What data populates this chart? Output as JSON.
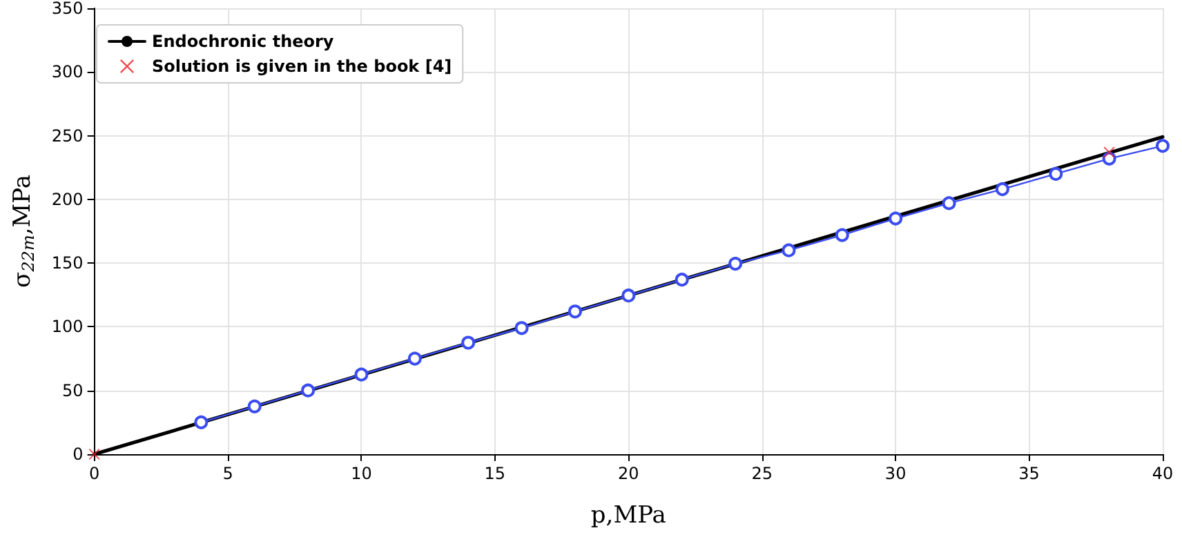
{
  "chart_data": {
    "type": "line",
    "xlabel": "p,MPa",
    "ylabel": "σ$_{22m}$,MPa",
    "xlim": [
      0,
      40
    ],
    "xticks": [
      0,
      5,
      10,
      15,
      20,
      25,
      30,
      35,
      40
    ],
    "ylim": [
      0,
      350
    ],
    "yticks": [
      0,
      50,
      100,
      150,
      200,
      250,
      300,
      350
    ],
    "grid": true,
    "legend": "top left",
    "series": [
      {
        "name": "Endochronic theory",
        "color": "#000000",
        "x": [
          0,
          40
        ],
        "values": [
          0,
          249
        ],
        "marker": "none",
        "line_style": "solid"
      },
      {
        "color": "#3a4cf0",
        "x": [
          4,
          6,
          8,
          10,
          12,
          14,
          16,
          18,
          20,
          22,
          24,
          26,
          28,
          30,
          32,
          34,
          36,
          38,
          40
        ],
        "values": [
          25,
          37.5,
          50,
          62.5,
          75,
          87.5,
          99,
          112,
          124.5,
          137,
          149.5,
          160,
          172,
          185,
          197,
          208,
          220,
          232,
          242
        ],
        "marker": "circle",
        "line_style": "solid"
      },
      {
        "name": "Solution is given in the book [4]",
        "type": "scatter",
        "color": "#e8202a",
        "x": [
          0,
          38
        ],
        "values": [
          0,
          237
        ],
        "marker": "cross"
      }
    ]
  }
}
